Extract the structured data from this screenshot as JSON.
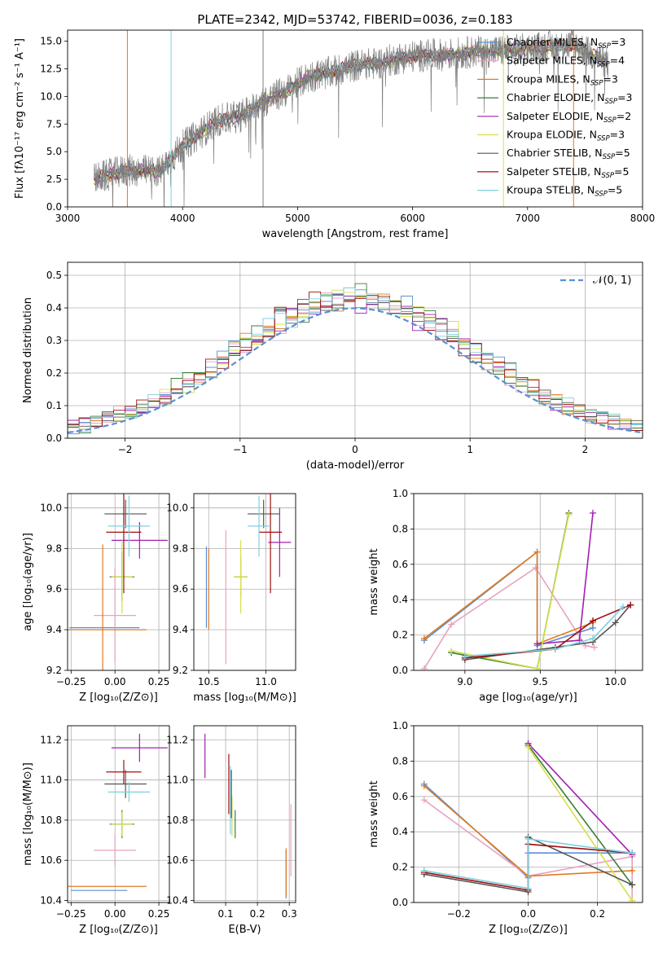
{
  "figure_title": "PLATE=2342, MJD=53742, FIBERID=0036, z=0.183",
  "colors": {
    "ChabrierMILES": "#5a8fd6",
    "SalpeterMILES": "#e8a2c0",
    "KroupaMILES": "#e07b22",
    "ChabrierELODIE": "#3a7d3a",
    "SalpeterELODIE": "#a020b0",
    "KroupaELODIE": "#d4e04a",
    "ChabrierSTELIB": "#555555",
    "SalpeterSTELIB": "#a01010",
    "KroupaSTELIB": "#7ed0dc",
    "normal": "#5b8fd4",
    "data": "#808080",
    "grid": "#b0b0b0"
  },
  "chart_data": [
    {
      "type": "line",
      "title": "PLATE=2342, MJD=53742, FIBERID=0036, z=0.183",
      "xlabel": "wavelength [Angstrom, rest frame]",
      "ylabel": "Flux [fλ10⁻¹⁷ erg cm⁻² s⁻¹ A⁻¹]",
      "xlim": [
        3000,
        8000
      ],
      "ylim": [
        0,
        16
      ],
      "xticks": [
        "3000",
        "4000",
        "5000",
        "6000",
        "7000",
        "8000"
      ],
      "yticks": [
        "0.0",
        "2.5",
        "5.0",
        "7.5",
        "10.0",
        "12.5",
        "15.0"
      ],
      "legend": [
        "Chabrier MILES, N",
        "Salpeter MILES, N",
        "Kroupa MILES, N",
        "Chabrier ELODIE, N",
        "Salpeter ELODIE, N",
        "Kroupa ELODIE, N",
        "Chabrier STELIB, N",
        "Salpeter STELIB, N",
        "Kroupa STELIB, N"
      ],
      "legend_n": [
        "=3",
        "=4",
        "=3",
        "=3",
        "=2",
        "=3",
        "=5",
        "=5",
        "=5"
      ],
      "legend_sub": "SSP",
      "legend_placement": "upper-right",
      "model_continuum": [
        [
          3230,
          2.5
        ],
        [
          3500,
          3.3
        ],
        [
          3800,
          3.2
        ],
        [
          4000,
          5.5
        ],
        [
          4300,
          7.8
        ],
        [
          4500,
          8.2
        ],
        [
          4700,
          9.5
        ],
        [
          4900,
          10.5
        ],
        [
          5100,
          11.8
        ],
        [
          5300,
          12.2
        ],
        [
          5500,
          12.8
        ],
        [
          5700,
          13.0
        ],
        [
          5900,
          13.5
        ],
        [
          6100,
          13.7
        ],
        [
          6300,
          13.8
        ],
        [
          6500,
          14.0
        ],
        [
          6700,
          14.1
        ],
        [
          6900,
          14.2
        ],
        [
          7100,
          14.4
        ],
        [
          7400,
          14.7
        ],
        [
          7700,
          13.0
        ]
      ]
    },
    {
      "type": "histogram",
      "xlabel": "(data-model)/error",
      "ylabel": "Normed distribution",
      "xlim": [
        -2.5,
        2.5
      ],
      "ylim": [
        0,
        0.54
      ],
      "xticks": [
        "−2",
        "−1",
        "0",
        "1",
        "2"
      ],
      "yticks": [
        "0.0",
        "0.1",
        "0.2",
        "0.3",
        "0.4",
        "0.5"
      ],
      "legend": [
        "𝒩(0, 1)"
      ],
      "bins_step": 0.1,
      "normal_curve": {
        "mean": 0,
        "sigma": 1
      }
    },
    {
      "type": "errorbar",
      "xlabel": "Z [log₁₀(Z/Z⊙)]",
      "ylabel": "age  [log₁₀(age/yr)]",
      "xlim": [
        -0.27,
        0.31
      ],
      "ylim": [
        9.2,
        10.07
      ],
      "xticks": [
        "−0.25",
        "0.00",
        "0.25"
      ],
      "yticks": [
        "9.2",
        "9.4",
        "9.6",
        "9.8",
        "10.0"
      ],
      "points": [
        {
          "m": "ChabrierMILES",
          "x": -0.06,
          "xe": 0.2,
          "y": 9.41,
          "ye": 0.0
        },
        {
          "m": "SalpeterMILES",
          "x": 0.0,
          "xe": 0.12,
          "y": 9.47,
          "ye": 0.23
        },
        {
          "m": "KroupaMILES",
          "x": -0.07,
          "xe": 0.25,
          "y": 9.4,
          "ye": 0.42
        },
        {
          "m": "ChabrierELODIE",
          "x": 0.04,
          "xe": 0.07,
          "y": 9.66,
          "ye": 0.12
        },
        {
          "m": "SalpeterELODIE",
          "x": 0.14,
          "xe": 0.16,
          "y": 9.84,
          "ye": 0.09
        },
        {
          "m": "KroupaELODIE",
          "x": 0.04,
          "xe": 0.06,
          "y": 9.66,
          "ye": 0.18
        },
        {
          "m": "ChabrierSTELIB",
          "x": 0.06,
          "xe": 0.12,
          "y": 9.97,
          "ye": 0.07
        },
        {
          "m": "SalpeterSTELIB",
          "x": 0.05,
          "xe": 0.1,
          "y": 9.88,
          "ye": 0.3
        },
        {
          "m": "KroupaSTELIB",
          "x": 0.08,
          "xe": 0.12,
          "y": 9.91,
          "ye": 0.15
        }
      ]
    },
    {
      "type": "errorbar",
      "xlabel": "mass [log₁₀(M/M⊙)]",
      "ylabel": "",
      "xlim": [
        10.37,
        11.26
      ],
      "ylim": [
        9.2,
        10.07
      ],
      "xticks": [
        "10.5",
        "11.0"
      ],
      "yticks": [
        "9.2",
        "9.4",
        "9.6",
        "9.8",
        "10.0"
      ],
      "points": [
        {
          "m": "ChabrierMILES",
          "x": 10.48,
          "xe": 0.0,
          "y": 9.61,
          "ye": 0.2
        },
        {
          "m": "SalpeterMILES",
          "x": 10.65,
          "xe": 0.0,
          "y": 9.56,
          "ye": 0.33
        },
        {
          "m": "KroupaMILES",
          "x": 10.5,
          "xe": 0.0,
          "y": 9.6,
          "ye": 0.2
        },
        {
          "m": "ChabrierELODIE",
          "x": 10.78,
          "xe": 0.06,
          "y": 9.66,
          "ye": 0.1
        },
        {
          "m": "SalpeterELODIE",
          "x": 11.12,
          "xe": 0.1,
          "y": 9.83,
          "ye": 0.17
        },
        {
          "m": "KroupaELODIE",
          "x": 10.78,
          "xe": 0.06,
          "y": 9.66,
          "ye": 0.18
        },
        {
          "m": "ChabrierSTELIB",
          "x": 10.98,
          "xe": 0.14,
          "y": 9.97,
          "ye": 0.07
        },
        {
          "m": "SalpeterSTELIB",
          "x": 11.04,
          "xe": 0.1,
          "y": 9.88,
          "ye": 0.3
        },
        {
          "m": "KroupaSTELIB",
          "x": 10.94,
          "xe": 0.1,
          "y": 9.91,
          "ye": 0.15
        }
      ]
    },
    {
      "type": "line",
      "xlabel": "age  [log₁₀(age/yr)]",
      "ylabel": "mass weight",
      "xlim": [
        8.66,
        10.18
      ],
      "ylim": [
        0,
        1
      ],
      "xticks": [
        "9.0",
        "9.5",
        "10.0"
      ],
      "yticks": [
        "0.0",
        "0.2",
        "0.4",
        "0.6",
        "0.8",
        "1.0"
      ],
      "series": [
        {
          "m": "ChabrierMILES",
          "x": [
            8.73,
            9.48,
            9.48,
            9.85,
            9.85
          ],
          "y": [
            0.17,
            0.67,
            0.14,
            0.24,
            0.28
          ]
        },
        {
          "m": "SalpeterMILES",
          "x": [
            8.73,
            8.91,
            9.47,
            9.8,
            9.86
          ],
          "y": [
            0.01,
            0.26,
            0.58,
            0.14,
            0.13
          ]
        },
        {
          "m": "KroupaMILES",
          "x": [
            8.73,
            9.48,
            9.48,
            9.85
          ],
          "y": [
            0.18,
            0.67,
            0.15,
            0.27
          ]
        },
        {
          "m": "ChabrierELODIE",
          "x": [
            8.91,
            9.48,
            9.69
          ],
          "y": [
            0.1,
            0.01,
            0.89
          ]
        },
        {
          "m": "SalpeterELODIE",
          "x": [
            9.48,
            9.76,
            9.85
          ],
          "y": [
            0.15,
            0.17,
            0.89
          ]
        },
        {
          "m": "KroupaELODIE",
          "x": [
            8.91,
            9.48,
            9.69
          ],
          "y": [
            0.11,
            0.01,
            0.88
          ]
        },
        {
          "m": "ChabrierSTELIB",
          "x": [
            9.0,
            9.6,
            9.85,
            10.0,
            10.1
          ],
          "y": [
            0.06,
            0.13,
            0.16,
            0.27,
            0.37
          ]
        },
        {
          "m": "SalpeterSTELIB",
          "x": [
            9.0,
            9.6,
            9.85,
            10.1
          ],
          "y": [
            0.07,
            0.12,
            0.28,
            0.37
          ]
        },
        {
          "m": "KroupaSTELIB",
          "x": [
            9.0,
            9.6,
            9.85,
            10.05
          ],
          "y": [
            0.08,
            0.12,
            0.18,
            0.36
          ]
        }
      ]
    },
    {
      "type": "errorbar",
      "xlabel": "Z [log₁₀(Z/Z⊙)]",
      "ylabel": "mass [log₁₀(M/M⊙)]",
      "xlim": [
        -0.27,
        0.31
      ],
      "ylim": [
        10.39,
        11.27
      ],
      "xticks": [
        "−0.25",
        "0.00",
        "0.25"
      ],
      "yticks": [
        "10.4",
        "10.6",
        "10.8",
        "11.0",
        "11.2"
      ],
      "points": [
        {
          "m": "ChabrierMILES",
          "x": -0.09,
          "xe": 0.16,
          "y": 10.45,
          "ye": 0.0
        },
        {
          "m": "SalpeterMILES",
          "x": 0.0,
          "xe": 0.12,
          "y": 10.65,
          "ye": 0.08
        },
        {
          "m": "KroupaMILES",
          "x": -0.07,
          "xe": 0.25,
          "y": 10.47,
          "ye": 0.0
        },
        {
          "m": "ChabrierELODIE",
          "x": 0.04,
          "xe": 0.07,
          "y": 10.78,
          "ye": 0.07
        },
        {
          "m": "SalpeterELODIE",
          "x": 0.14,
          "xe": 0.16,
          "y": 11.16,
          "ye": 0.07
        },
        {
          "m": "KroupaELODIE",
          "x": 0.04,
          "xe": 0.06,
          "y": 10.78,
          "ye": 0.06
        },
        {
          "m": "ChabrierSTELIB",
          "x": 0.06,
          "xe": 0.12,
          "y": 10.98,
          "ye": 0.07
        },
        {
          "m": "SalpeterSTELIB",
          "x": 0.05,
          "xe": 0.1,
          "y": 11.04,
          "ye": 0.06
        },
        {
          "m": "KroupaSTELIB",
          "x": 0.08,
          "xe": 0.12,
          "y": 10.94,
          "ye": 0.05
        }
      ]
    },
    {
      "type": "errorbar",
      "xlabel": "E(B-V)",
      "ylabel": "",
      "xlim": [
        0.0,
        0.32
      ],
      "ylim": [
        10.39,
        11.27
      ],
      "xticks": [
        "0.1",
        "0.2",
        "0.3"
      ],
      "yticks": [
        "10.4",
        "10.6",
        "10.8",
        "11.0",
        "11.2"
      ],
      "points": [
        {
          "m": "ChabrierMILES",
          "x": 0.29,
          "xe": 0.0,
          "y": 10.53,
          "ye": 0.12
        },
        {
          "m": "SalpeterMILES",
          "x": 0.305,
          "xe": 0.0,
          "y": 10.7,
          "ye": 0.18
        },
        {
          "m": "KroupaMILES",
          "x": 0.29,
          "xe": 0.0,
          "y": 10.54,
          "ye": 0.12
        },
        {
          "m": "ChabrierELODIE",
          "x": 0.13,
          "xe": 0.0,
          "y": 10.78,
          "ye": 0.07
        },
        {
          "m": "SalpeterELODIE",
          "x": 0.035,
          "xe": 0.0,
          "y": 11.12,
          "ye": 0.11
        },
        {
          "m": "KroupaELODIE",
          "x": 0.12,
          "xe": 0.0,
          "y": 10.82,
          "ye": 0.1
        },
        {
          "m": "ChabrierSTELIB",
          "x": 0.118,
          "xe": 0.0,
          "y": 10.93,
          "ye": 0.12
        },
        {
          "m": "SalpeterSTELIB",
          "x": 0.11,
          "xe": 0.0,
          "y": 10.98,
          "ye": 0.15
        },
        {
          "m": "KroupaSTELIB",
          "x": 0.115,
          "xe": 0.0,
          "y": 10.9,
          "ye": 0.17
        }
      ]
    },
    {
      "type": "line",
      "xlabel": "Z [log₁₀(Z/Z⊙)]",
      "ylabel": "mass weight",
      "xlim": [
        -0.33,
        0.33
      ],
      "ylim": [
        0,
        1
      ],
      "xticks": [
        "−0.2",
        "0.0",
        "0.2"
      ],
      "yticks": [
        "0.0",
        "0.2",
        "0.4",
        "0.6",
        "0.8",
        "1.0"
      ],
      "series": [
        {
          "m": "ChabrierMILES",
          "x": [
            -0.3,
            0.0,
            0.0,
            0.3
          ],
          "y": [
            0.67,
            0.14,
            0.28,
            0.28
          ]
        },
        {
          "m": "SalpeterMILES",
          "x": [
            -0.3,
            0.0,
            0.3,
            0.3
          ],
          "y": [
            0.58,
            0.15,
            0.26,
            0.01
          ]
        },
        {
          "m": "KroupaMILES",
          "x": [
            -0.3,
            0.0,
            0.3
          ],
          "y": [
            0.66,
            0.15,
            0.18
          ]
        },
        {
          "m": "ChabrierELODIE",
          "x": [
            0.0,
            0.3
          ],
          "y": [
            0.89,
            0.1
          ]
        },
        {
          "m": "SalpeterELODIE",
          "x": [
            0.0,
            0.3
          ],
          "y": [
            0.9,
            0.27
          ]
        },
        {
          "m": "KroupaELODIE",
          "x": [
            0.0,
            0.3
          ],
          "y": [
            0.88,
            0.01
          ]
        },
        {
          "m": "ChabrierSTELIB",
          "x": [
            -0.3,
            0.0,
            0.0,
            0.3
          ],
          "y": [
            0.16,
            0.06,
            0.37,
            0.1
          ]
        },
        {
          "m": "SalpeterSTELIB",
          "x": [
            -0.3,
            0.0,
            0.0,
            0.3
          ],
          "y": [
            0.17,
            0.07,
            0.33,
            0.28
          ]
        },
        {
          "m": "KroupaSTELIB",
          "x": [
            -0.3,
            0.0,
            0.0,
            0.3
          ],
          "y": [
            0.18,
            0.08,
            0.36,
            0.28
          ]
        }
      ]
    }
  ]
}
